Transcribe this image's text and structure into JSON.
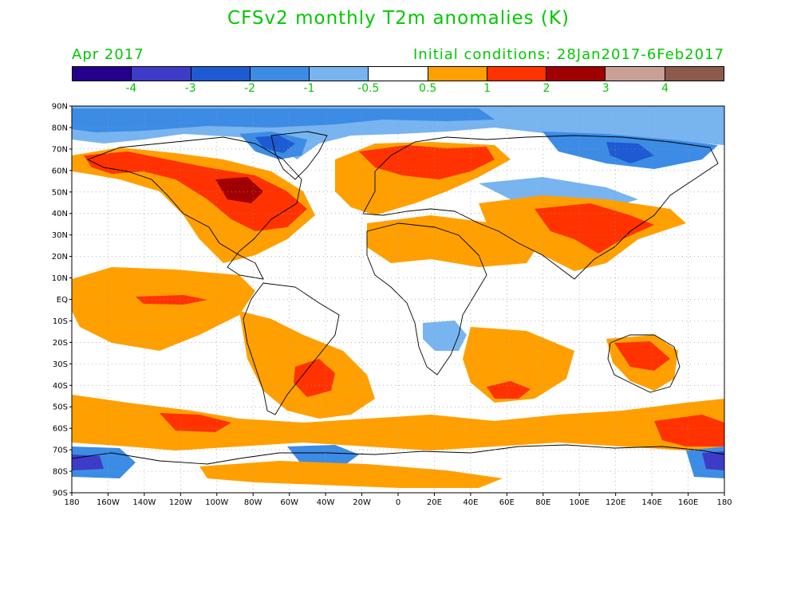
{
  "title": "CFSv2 monthly T2m anomalies (K)",
  "forecast_month": "Apr 2017",
  "initial_conditions": "Initial conditions: 28Jan2017-6Feb2017",
  "legend": {
    "colors": [
      "#24008c",
      "#3c3cc8",
      "#1e5ad2",
      "#3c8ce6",
      "#78b4f0",
      "#ffffff",
      "#ffa000",
      "#ff3200",
      "#a00000",
      "#c8a096",
      "#8c5a4b"
    ],
    "labels": [
      "-4",
      "-3",
      "-2",
      "-1",
      "-0.5",
      "0.5",
      "1",
      "2",
      "3",
      "4"
    ]
  },
  "axes": {
    "lat_labels": [
      "90N",
      "80N",
      "70N",
      "60N",
      "50N",
      "40N",
      "30N",
      "20N",
      "10N",
      "EQ",
      "10S",
      "20S",
      "30S",
      "40S",
      "50S",
      "60S",
      "70S",
      "80S",
      "90S"
    ],
    "lon_labels": [
      "180",
      "160W",
      "140W",
      "120W",
      "100W",
      "80W",
      "60W",
      "40W",
      "20W",
      "0",
      "20E",
      "40E",
      "60E",
      "80E",
      "100E",
      "120E",
      "140E",
      "160E",
      "180"
    ]
  }
}
